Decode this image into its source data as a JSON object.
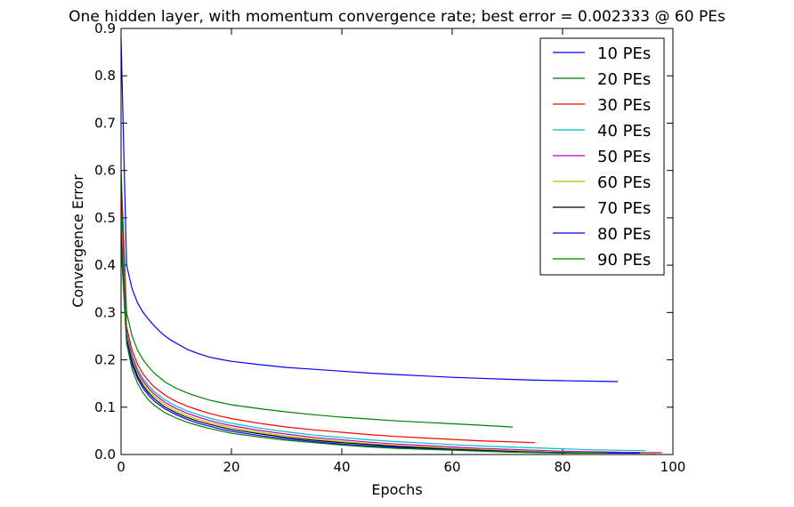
{
  "chart_data": {
    "type": "line",
    "title": "One hidden layer, with momentum convergence rate; best error = 0.002333 @ 60 PEs",
    "xlabel": "Epochs",
    "ylabel": "Convergence Error",
    "xlim": [
      0,
      100
    ],
    "ylim": [
      0.0,
      0.9
    ],
    "x_ticks": [
      "0",
      "20",
      "40",
      "60",
      "80",
      "100"
    ],
    "y_ticks": [
      "0.0",
      "0.1",
      "0.2",
      "0.3",
      "0.4",
      "0.5",
      "0.6",
      "0.7",
      "0.8",
      "0.9"
    ],
    "grid": false,
    "legend_position": "top-right",
    "series": [
      {
        "name": "10 PEs",
        "color": "#0000ff",
        "points": [
          [
            0,
            0.88
          ],
          [
            1,
            0.4
          ],
          [
            2,
            0.35
          ],
          [
            3,
            0.32
          ],
          [
            4,
            0.3
          ],
          [
            5,
            0.285
          ],
          [
            6,
            0.272
          ],
          [
            7,
            0.26
          ],
          [
            8,
            0.25
          ],
          [
            9,
            0.242
          ],
          [
            10,
            0.235
          ],
          [
            12,
            0.222
          ],
          [
            14,
            0.213
          ],
          [
            16,
            0.206
          ],
          [
            18,
            0.201
          ],
          [
            20,
            0.197
          ],
          [
            25,
            0.19
          ],
          [
            30,
            0.184
          ],
          [
            35,
            0.18
          ],
          [
            40,
            0.176
          ],
          [
            45,
            0.172
          ],
          [
            50,
            0.169
          ],
          [
            55,
            0.166
          ],
          [
            60,
            0.163
          ],
          [
            65,
            0.161
          ],
          [
            70,
            0.159
          ],
          [
            75,
            0.157
          ],
          [
            80,
            0.156
          ],
          [
            85,
            0.155
          ],
          [
            90,
            0.154
          ]
        ]
      },
      {
        "name": "20 PEs",
        "color": "#008000",
        "points": [
          [
            0,
            0.6
          ],
          [
            1,
            0.3
          ],
          [
            2,
            0.25
          ],
          [
            3,
            0.22
          ],
          [
            4,
            0.2
          ],
          [
            5,
            0.185
          ],
          [
            6,
            0.172
          ],
          [
            8,
            0.153
          ],
          [
            10,
            0.14
          ],
          [
            12,
            0.13
          ],
          [
            14,
            0.122
          ],
          [
            16,
            0.115
          ],
          [
            18,
            0.11
          ],
          [
            20,
            0.105
          ],
          [
            25,
            0.097
          ],
          [
            30,
            0.09
          ],
          [
            35,
            0.084
          ],
          [
            40,
            0.079
          ],
          [
            45,
            0.075
          ],
          [
            50,
            0.071
          ],
          [
            55,
            0.068
          ],
          [
            60,
            0.065
          ],
          [
            65,
            0.062
          ],
          [
            71,
            0.058
          ]
        ]
      },
      {
        "name": "30 PEs",
        "color": "#ff0000",
        "points": [
          [
            0,
            0.55
          ],
          [
            1,
            0.27
          ],
          [
            2,
            0.22
          ],
          [
            3,
            0.19
          ],
          [
            4,
            0.17
          ],
          [
            5,
            0.155
          ],
          [
            6,
            0.143
          ],
          [
            8,
            0.125
          ],
          [
            10,
            0.112
          ],
          [
            12,
            0.102
          ],
          [
            14,
            0.094
          ],
          [
            16,
            0.087
          ],
          [
            18,
            0.081
          ],
          [
            20,
            0.076
          ],
          [
            25,
            0.066
          ],
          [
            30,
            0.058
          ],
          [
            35,
            0.052
          ],
          [
            40,
            0.047
          ],
          [
            45,
            0.042
          ],
          [
            50,
            0.038
          ],
          [
            55,
            0.035
          ],
          [
            60,
            0.032
          ],
          [
            65,
            0.029
          ],
          [
            70,
            0.027
          ],
          [
            75,
            0.025
          ]
        ]
      },
      {
        "name": "40 PEs",
        "color": "#00bfbf",
        "points": [
          [
            0,
            0.5
          ],
          [
            1,
            0.26
          ],
          [
            2,
            0.21
          ],
          [
            3,
            0.18
          ],
          [
            4,
            0.16
          ],
          [
            5,
            0.145
          ],
          [
            6,
            0.133
          ],
          [
            8,
            0.115
          ],
          [
            10,
            0.102
          ],
          [
            12,
            0.092
          ],
          [
            14,
            0.084
          ],
          [
            16,
            0.077
          ],
          [
            18,
            0.071
          ],
          [
            20,
            0.066
          ],
          [
            25,
            0.056
          ],
          [
            30,
            0.048
          ],
          [
            35,
            0.041
          ],
          [
            40,
            0.036
          ],
          [
            45,
            0.031
          ],
          [
            50,
            0.027
          ],
          [
            55,
            0.024
          ],
          [
            60,
            0.021
          ],
          [
            65,
            0.018
          ],
          [
            70,
            0.016
          ],
          [
            75,
            0.014
          ],
          [
            80,
            0.012
          ],
          [
            85,
            0.01
          ],
          [
            90,
            0.009
          ],
          [
            95,
            0.008
          ]
        ]
      },
      {
        "name": "50 PEs",
        "color": "#bf00bf",
        "points": [
          [
            0,
            0.48
          ],
          [
            1,
            0.255
          ],
          [
            2,
            0.205
          ],
          [
            3,
            0.175
          ],
          [
            4,
            0.155
          ],
          [
            5,
            0.14
          ],
          [
            6,
            0.128
          ],
          [
            8,
            0.11
          ],
          [
            10,
            0.097
          ],
          [
            12,
            0.087
          ],
          [
            14,
            0.079
          ],
          [
            16,
            0.072
          ],
          [
            18,
            0.066
          ],
          [
            20,
            0.061
          ],
          [
            25,
            0.051
          ],
          [
            30,
            0.043
          ],
          [
            35,
            0.036
          ],
          [
            40,
            0.031
          ],
          [
            45,
            0.026
          ],
          [
            50,
            0.022
          ],
          [
            55,
            0.019
          ],
          [
            60,
            0.016
          ],
          [
            65,
            0.013
          ],
          [
            70,
            0.011
          ],
          [
            75,
            0.009
          ],
          [
            80,
            0.007
          ],
          [
            85,
            0.006
          ],
          [
            90,
            0.005
          ],
          [
            95,
            0.004
          ],
          [
            98,
            0.004
          ]
        ]
      },
      {
        "name": "60 PEs",
        "color": "#bfbf00",
        "points": [
          [
            0,
            0.47
          ],
          [
            1,
            0.25
          ],
          [
            2,
            0.2
          ],
          [
            3,
            0.17
          ],
          [
            4,
            0.15
          ],
          [
            5,
            0.135
          ],
          [
            6,
            0.123
          ],
          [
            8,
            0.105
          ],
          [
            10,
            0.092
          ],
          [
            12,
            0.082
          ],
          [
            14,
            0.074
          ],
          [
            16,
            0.068
          ],
          [
            18,
            0.062
          ],
          [
            20,
            0.057
          ],
          [
            25,
            0.047
          ],
          [
            30,
            0.039
          ],
          [
            35,
            0.033
          ],
          [
            40,
            0.027
          ],
          [
            45,
            0.023
          ],
          [
            50,
            0.019
          ],
          [
            55,
            0.016
          ],
          [
            60,
            0.013
          ],
          [
            65,
            0.011
          ],
          [
            70,
            0.009
          ],
          [
            75,
            0.007
          ],
          [
            80,
            0.005
          ],
          [
            85,
            0.004
          ],
          [
            90,
            0.003
          ],
          [
            95,
            0.0025
          ],
          [
            97,
            0.0023
          ]
        ]
      },
      {
        "name": "70 PEs",
        "color": "#000000",
        "points": [
          [
            0,
            0.46
          ],
          [
            1,
            0.245
          ],
          [
            2,
            0.195
          ],
          [
            3,
            0.165
          ],
          [
            4,
            0.145
          ],
          [
            5,
            0.13
          ],
          [
            6,
            0.118
          ],
          [
            8,
            0.1
          ],
          [
            10,
            0.088
          ],
          [
            12,
            0.078
          ],
          [
            14,
            0.07
          ],
          [
            16,
            0.064
          ],
          [
            18,
            0.058
          ],
          [
            20,
            0.053
          ],
          [
            25,
            0.044
          ],
          [
            30,
            0.036
          ],
          [
            35,
            0.03
          ],
          [
            40,
            0.025
          ],
          [
            45,
            0.021
          ],
          [
            50,
            0.017
          ],
          [
            55,
            0.014
          ],
          [
            60,
            0.011
          ],
          [
            65,
            0.009
          ],
          [
            70,
            0.007
          ],
          [
            75,
            0.005
          ],
          [
            80,
            0.004
          ],
          [
            85,
            0.003
          ],
          [
            90,
            0.003
          ]
        ]
      },
      {
        "name": "80 PEs",
        "color": "#0000ff",
        "points": [
          [
            0,
            0.45
          ],
          [
            1,
            0.24
          ],
          [
            2,
            0.19
          ],
          [
            3,
            0.16
          ],
          [
            4,
            0.14
          ],
          [
            5,
            0.125
          ],
          [
            6,
            0.113
          ],
          [
            8,
            0.096
          ],
          [
            10,
            0.084
          ],
          [
            12,
            0.074
          ],
          [
            14,
            0.066
          ],
          [
            16,
            0.06
          ],
          [
            18,
            0.054
          ],
          [
            20,
            0.049
          ],
          [
            25,
            0.04
          ],
          [
            30,
            0.033
          ],
          [
            35,
            0.027
          ],
          [
            40,
            0.022
          ],
          [
            45,
            0.018
          ],
          [
            50,
            0.015
          ],
          [
            55,
            0.012
          ],
          [
            60,
            0.01
          ],
          [
            65,
            0.008
          ],
          [
            70,
            0.006
          ],
          [
            75,
            0.005
          ],
          [
            80,
            0.004
          ],
          [
            85,
            0.003
          ],
          [
            90,
            0.003
          ],
          [
            94,
            0.003
          ]
        ]
      },
      {
        "name": "90 PEs",
        "color": "#008000",
        "points": [
          [
            0,
            0.44
          ],
          [
            1,
            0.235
          ],
          [
            2,
            0.18
          ],
          [
            3,
            0.15
          ],
          [
            4,
            0.13
          ],
          [
            5,
            0.115
          ],
          [
            6,
            0.104
          ],
          [
            8,
            0.088
          ],
          [
            10,
            0.077
          ],
          [
            12,
            0.068
          ],
          [
            14,
            0.061
          ],
          [
            16,
            0.055
          ],
          [
            18,
            0.05
          ],
          [
            20,
            0.045
          ],
          [
            25,
            0.037
          ],
          [
            30,
            0.03
          ],
          [
            35,
            0.025
          ],
          [
            40,
            0.02
          ],
          [
            45,
            0.016
          ],
          [
            50,
            0.013
          ],
          [
            55,
            0.011
          ],
          [
            60,
            0.009
          ],
          [
            65,
            0.007
          ],
          [
            70,
            0.005
          ],
          [
            75,
            0.004
          ],
          [
            80,
            0.003
          ],
          [
            85,
            0.003
          ],
          [
            88,
            0.003
          ]
        ]
      }
    ]
  }
}
